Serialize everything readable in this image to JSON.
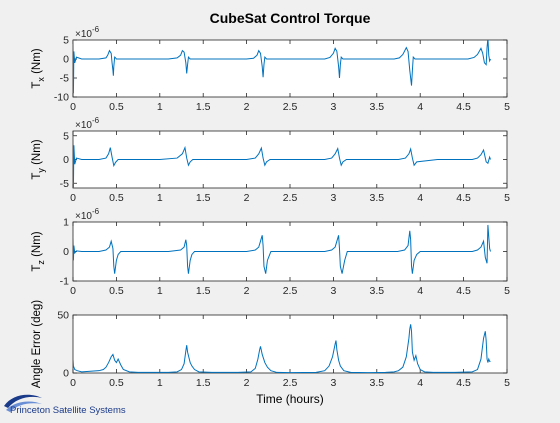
{
  "figure": {
    "background": "#f0f0f0",
    "axes_color": "#ffffff",
    "line_color": "#0072bd",
    "brand_colors": [
      "#1a3a8a",
      "#6b8fd6"
    ],
    "xlabel": "Time (hours)",
    "brand": "Princeton Satellite Systems"
  },
  "chart_data": [
    {
      "type": "line",
      "title": "CubeSat Control Torque",
      "ylabel": "T_x (Nm)",
      "ylabel_main": "T",
      "ylabel_sub": "x",
      "ylabel_unit": " (Nm)",
      "multiplier": "×10",
      "multiplier_exp": "-6",
      "xlim": [
        0,
        5
      ],
      "ylim": [
        -10,
        5
      ],
      "xticks": [
        "0",
        "0.5",
        "1",
        "1.5",
        "2",
        "2.5",
        "3",
        "3.5",
        "4",
        "4.5",
        "5"
      ],
      "yticks": [
        "-10",
        "-5",
        "0",
        "5"
      ],
      "series": [
        {
          "x": [
            0,
            0.005,
            0.01,
            0.02,
            0.04,
            0.1,
            0.2,
            0.3,
            0.38,
            0.4,
            0.42,
            0.44,
            0.45,
            0.46,
            0.465,
            0.47,
            0.48,
            0.49,
            0.5,
            0.55,
            0.7,
            0.9,
            1.1,
            1.2,
            1.24,
            1.26,
            1.28,
            1.3,
            1.31,
            1.32,
            1.33,
            1.35,
            1.4,
            1.6,
            1.8,
            2.0,
            2.08,
            2.12,
            2.14,
            2.16,
            2.18,
            2.19,
            2.2,
            2.21,
            2.23,
            2.3,
            2.5,
            2.7,
            2.9,
            2.96,
            3.0,
            3.02,
            3.04,
            3.06,
            3.07,
            3.08,
            3.09,
            3.11,
            3.2,
            3.4,
            3.6,
            3.7,
            3.76,
            3.8,
            3.84,
            3.86,
            3.88,
            3.9,
            3.91,
            3.92,
            3.94,
            4.0,
            4.2,
            4.4,
            4.55,
            4.62,
            4.66,
            4.7,
            4.72,
            4.74,
            4.76,
            4.77,
            4.78,
            4.79,
            4.8,
            4.81
          ],
          "y": [
            5,
            -9,
            2,
            -1,
            0.5,
            0,
            0,
            0,
            0.3,
            1,
            2.2,
            1.5,
            -1,
            -3,
            -4.4,
            -2,
            0.5,
            0.3,
            0,
            0,
            0,
            0,
            0,
            0.3,
            1,
            2.2,
            1.8,
            -1,
            -3.8,
            -1.5,
            0.5,
            0,
            0,
            0,
            0,
            0,
            0.2,
            1,
            2.2,
            1.5,
            -2,
            -4.8,
            -1.5,
            0.5,
            0,
            0,
            0,
            0,
            0,
            0.4,
            1.5,
            2.8,
            2,
            -2,
            -5,
            -1.5,
            0.5,
            0,
            0,
            0,
            0,
            0,
            0.3,
            1.2,
            3,
            2,
            -3,
            -7,
            -3,
            0.5,
            0,
            0,
            0,
            0,
            0,
            0.4,
            1.2,
            2.8,
            1.5,
            -1,
            -1.5,
            3,
            5.5,
            1,
            -0.5,
            0
          ]
        }
      ]
    },
    {
      "type": "line",
      "ylabel": "T_y (Nm)",
      "ylabel_main": "T",
      "ylabel_sub": "y",
      "ylabel_unit": " (Nm)",
      "multiplier": "×10",
      "multiplier_exp": "-6",
      "xlim": [
        0,
        5
      ],
      "ylim": [
        -6,
        6
      ],
      "xticks": [
        "0",
        "0.5",
        "1",
        "1.5",
        "2",
        "2.5",
        "3",
        "3.5",
        "4",
        "4.5",
        "5"
      ],
      "yticks": [
        "-5",
        "0",
        "5"
      ],
      "series": [
        {
          "x": [
            0,
            0.005,
            0.01,
            0.02,
            0.04,
            0.1,
            0.3,
            0.38,
            0.41,
            0.43,
            0.45,
            0.47,
            0.49,
            0.52,
            0.7,
            1.0,
            1.2,
            1.26,
            1.29,
            1.31,
            1.33,
            1.35,
            1.38,
            1.6,
            2.0,
            2.1,
            2.14,
            2.17,
            2.19,
            2.21,
            2.23,
            2.27,
            2.5,
            2.9,
            2.98,
            3.02,
            3.05,
            3.07,
            3.09,
            3.11,
            3.15,
            3.4,
            3.75,
            3.83,
            3.87,
            3.89,
            3.91,
            3.93,
            3.96,
            4.2,
            4.6,
            4.66,
            4.7,
            4.73,
            4.76,
            4.78,
            4.8,
            4.81
          ],
          "y": [
            5,
            -6,
            3,
            -1,
            0.3,
            0,
            0,
            0.3,
            1.2,
            2.5,
            0.5,
            -1.3,
            -0.6,
            0,
            0,
            0,
            0.3,
            1.2,
            2.5,
            0.3,
            -1.2,
            -0.5,
            0,
            0,
            0,
            0.3,
            1.2,
            2.4,
            0.3,
            -1.2,
            -0.5,
            0,
            0,
            0,
            0.3,
            1.2,
            2.3,
            0.3,
            -1.2,
            -0.5,
            0,
            0,
            0,
            0.3,
            1.2,
            2.2,
            0.3,
            -1.2,
            -0.5,
            0,
            0,
            0.3,
            1,
            2,
            -0.5,
            -0.8,
            0.5,
            0
          ]
        }
      ]
    },
    {
      "type": "line",
      "ylabel": "T_z (Nm)",
      "ylabel_main": "T",
      "ylabel_sub": "z",
      "ylabel_unit": " (Nm)",
      "multiplier": "×10",
      "multiplier_exp": "-6",
      "xlim": [
        0,
        5
      ],
      "ylim": [
        -1,
        1
      ],
      "xticks": [
        "0",
        "0.5",
        "1",
        "1.5",
        "2",
        "2.5",
        "3",
        "3.5",
        "4",
        "4.5",
        "5"
      ],
      "yticks": [
        "-1",
        "0",
        "1"
      ],
      "series": [
        {
          "x": [
            0,
            0.005,
            0.01,
            0.02,
            0.04,
            0.1,
            0.3,
            0.38,
            0.42,
            0.44,
            0.46,
            0.47,
            0.48,
            0.5,
            0.52,
            0.55,
            0.8,
            1.1,
            1.24,
            1.28,
            1.3,
            1.31,
            1.32,
            1.33,
            1.35,
            1.37,
            1.4,
            1.7,
            2.0,
            2.1,
            2.14,
            2.16,
            2.18,
            2.19,
            2.2,
            2.22,
            2.24,
            2.28,
            2.6,
            2.9,
            2.98,
            3.02,
            3.04,
            3.06,
            3.07,
            3.08,
            3.1,
            3.13,
            3.16,
            3.45,
            3.74,
            3.82,
            3.86,
            3.88,
            3.89,
            3.9,
            3.91,
            3.93,
            3.96,
            4.0,
            4.3,
            4.6,
            4.66,
            4.7,
            4.73,
            4.75,
            4.77,
            4.78,
            4.79,
            4.8,
            4.81
          ],
          "y": [
            0.5,
            -0.3,
            0.2,
            -0.05,
            0.02,
            0,
            0,
            0.05,
            0.15,
            0.35,
            0.1,
            -0.5,
            -0.75,
            -0.3,
            -0.1,
            0,
            0,
            0,
            0.05,
            0.15,
            0.4,
            0.2,
            -0.5,
            -0.75,
            -0.3,
            -0.1,
            0,
            0,
            0,
            0.05,
            0.15,
            0.35,
            0.55,
            0.2,
            -0.5,
            -0.75,
            -0.3,
            0,
            0,
            0,
            0.05,
            0.15,
            0.35,
            0.55,
            0.1,
            -0.5,
            -0.75,
            -0.3,
            0,
            0,
            0,
            0.05,
            0.2,
            0.7,
            0.4,
            -0.5,
            -0.75,
            -0.3,
            -0.1,
            0,
            0,
            0,
            0.05,
            0.15,
            0.35,
            -0.2,
            -0.4,
            0.9,
            0.5,
            0.1,
            0
          ]
        }
      ]
    },
    {
      "type": "line",
      "ylabel": "Angle Error (deg)",
      "xlim": [
        0,
        5
      ],
      "ylim": [
        0,
        50
      ],
      "xticks": [
        "0",
        "0.5",
        "1",
        "1.5",
        "2",
        "2.5",
        "3",
        "3.5",
        "4",
        "4.5",
        "5"
      ],
      "yticks": [
        "0",
        "50"
      ],
      "series": [
        {
          "x": [
            0,
            0.005,
            0.02,
            0.05,
            0.1,
            0.2,
            0.3,
            0.35,
            0.38,
            0.41,
            0.44,
            0.46,
            0.48,
            0.5,
            0.52,
            0.55,
            0.58,
            0.65,
            0.75,
            0.9,
            1.1,
            1.2,
            1.25,
            1.28,
            1.3,
            1.31,
            1.32,
            1.35,
            1.37,
            1.4,
            1.45,
            1.6,
            1.9,
            2.05,
            2.1,
            2.13,
            2.15,
            2.16,
            2.18,
            2.21,
            2.24,
            2.28,
            2.35,
            2.5,
            2.8,
            2.9,
            2.95,
            2.99,
            3.02,
            3.03,
            3.04,
            3.06,
            3.08,
            3.12,
            3.2,
            3.4,
            3.6,
            3.7,
            3.75,
            3.8,
            3.84,
            3.87,
            3.88,
            3.89,
            3.9,
            3.91,
            3.93,
            3.95,
            3.97,
            4.0,
            4.05,
            4.15,
            4.4,
            4.6,
            4.66,
            4.7,
            4.73,
            4.75,
            4.76,
            4.77,
            4.78,
            4.79,
            4.8,
            4.81
          ],
          "y": [
            12,
            6,
            3,
            2,
            1,
            1.5,
            2,
            3,
            5,
            9,
            14,
            16,
            11,
            9,
            12,
            7,
            3,
            1,
            0.5,
            0.5,
            0.5,
            1,
            3,
            8,
            19,
            24,
            18,
            9,
            6,
            3,
            1,
            0.5,
            0.5,
            1,
            4,
            12,
            20,
            23,
            16,
            9,
            5,
            2,
            0.5,
            0.3,
            0.5,
            2,
            6,
            14,
            25,
            28,
            20,
            11,
            6,
            2,
            0.5,
            0.3,
            0.5,
            1,
            2,
            5,
            14,
            30,
            38,
            42,
            36,
            18,
            11,
            15,
            8,
            3,
            1,
            0.5,
            0.5,
            1,
            3,
            12,
            30,
            36,
            28,
            12,
            9,
            12,
            10,
            10
          ]
        }
      ]
    }
  ]
}
